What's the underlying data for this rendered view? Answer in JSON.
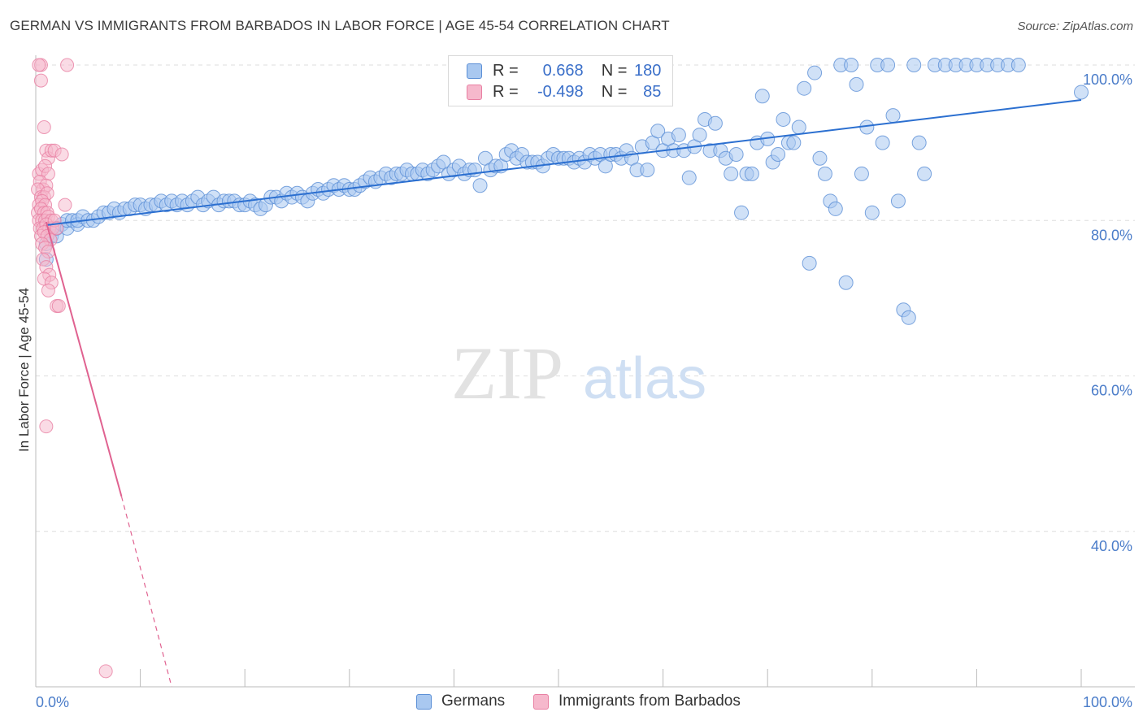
{
  "title": "GERMAN VS IMMIGRANTS FROM BARBADOS IN LABOR FORCE | AGE 45-54 CORRELATION CHART",
  "source": "Source: ZipAtlas.com",
  "watermark": {
    "zip": "ZIP",
    "atlas": "atlas"
  },
  "colors": {
    "blue_fill": "#a9c8f0",
    "blue_stroke": "#5b8fd6",
    "blue_line": "#2b6fd0",
    "pink_fill": "#f6b8cc",
    "pink_stroke": "#e87fa2",
    "pink_line": "#e06290",
    "axis_label": "#4a7cc9"
  },
  "legend": {
    "rows": [
      {
        "r_label": "R = ",
        "r_value": "0.668",
        "n_label": "N = ",
        "n_value": "180"
      },
      {
        "r_label": "R = ",
        "r_value": "-0.498",
        "n_label": "N = ",
        "n_value": "85"
      }
    ]
  },
  "bottom_legend": {
    "germans": "Germans",
    "barbados": "Immigrants from Barbados"
  },
  "chart_data": {
    "type": "scatter",
    "title": "GERMAN VS IMMIGRANTS FROM BARBADOS IN LABOR FORCE | AGE 45-54 CORRELATION CHART",
    "xlabel": "",
    "ylabel": "In Labor Force | Age 45-54",
    "xlim": [
      0,
      100
    ],
    "ylim": [
      20,
      100
    ],
    "x_tick_labels": [
      "0.0%",
      "100.0%"
    ],
    "y_ticks": [
      {
        "value": 100,
        "label": "100.0%"
      },
      {
        "value": 80,
        "label": "80.0%"
      },
      {
        "value": 60,
        "label": "60.0%"
      },
      {
        "value": 40,
        "label": "40.0%"
      }
    ],
    "grid": true,
    "series": [
      {
        "name": "Germans",
        "color": "#a9c8f0",
        "trend": {
          "x0": 1,
          "y0": 79.4,
          "x1": 100,
          "y1": 95.5
        },
        "points": [
          [
            1,
            77
          ],
          [
            1,
            75
          ],
          [
            1.5,
            78
          ],
          [
            2,
            78
          ],
          [
            2,
            79
          ],
          [
            2.5,
            79.5
          ],
          [
            3,
            79
          ],
          [
            3,
            80
          ],
          [
            3.5,
            80
          ],
          [
            4,
            79.5
          ],
          [
            4,
            80
          ],
          [
            4.5,
            80.5
          ],
          [
            5,
            80
          ],
          [
            5.5,
            80
          ],
          [
            6,
            80.5
          ],
          [
            6.5,
            81
          ],
          [
            7,
            81
          ],
          [
            7.5,
            81.5
          ],
          [
            8,
            81
          ],
          [
            8.5,
            81.5
          ],
          [
            9,
            81.5
          ],
          [
            9.5,
            82
          ],
          [
            10,
            82
          ],
          [
            10.5,
            81.5
          ],
          [
            11,
            82
          ],
          [
            11.5,
            82
          ],
          [
            12,
            82.5
          ],
          [
            12.5,
            82
          ],
          [
            13,
            82.5
          ],
          [
            13.5,
            82
          ],
          [
            14,
            82.5
          ],
          [
            14.5,
            82
          ],
          [
            15,
            82.5
          ],
          [
            15.5,
            83
          ],
          [
            16,
            82
          ],
          [
            16.5,
            82.5
          ],
          [
            17,
            83
          ],
          [
            17.5,
            82
          ],
          [
            18,
            82.5
          ],
          [
            18.5,
            82.5
          ],
          [
            19,
            82.5
          ],
          [
            19.5,
            82
          ],
          [
            20,
            82
          ],
          [
            20.5,
            82.5
          ],
          [
            21,
            82
          ],
          [
            21.5,
            81.5
          ],
          [
            22,
            82
          ],
          [
            22.5,
            83
          ],
          [
            23,
            83
          ],
          [
            23.5,
            82.5
          ],
          [
            24,
            83.5
          ],
          [
            24.5,
            83
          ],
          [
            25,
            83.5
          ],
          [
            25.5,
            83
          ],
          [
            26,
            82.5
          ],
          [
            26.5,
            83.5
          ],
          [
            27,
            84
          ],
          [
            27.5,
            83.5
          ],
          [
            28,
            84
          ],
          [
            28.5,
            84.5
          ],
          [
            29,
            84
          ],
          [
            29.5,
            84.5
          ],
          [
            30,
            84
          ],
          [
            30.5,
            84
          ],
          [
            31,
            84.5
          ],
          [
            31.5,
            85
          ],
          [
            32,
            85.5
          ],
          [
            32.5,
            85
          ],
          [
            33,
            85.5
          ],
          [
            33.5,
            86
          ],
          [
            34,
            85.5
          ],
          [
            34.5,
            86
          ],
          [
            35,
            86
          ],
          [
            35.5,
            86.5
          ],
          [
            36,
            86
          ],
          [
            36.5,
            86
          ],
          [
            37,
            86.5
          ],
          [
            37.5,
            86
          ],
          [
            38,
            86.5
          ],
          [
            38.5,
            87
          ],
          [
            39,
            87.5
          ],
          [
            39.5,
            86
          ],
          [
            40,
            86.5
          ],
          [
            40.5,
            87
          ],
          [
            41,
            86
          ],
          [
            41.5,
            86.5
          ],
          [
            42,
            86.5
          ],
          [
            42.5,
            84.5
          ],
          [
            43,
            88
          ],
          [
            43.5,
            86.5
          ],
          [
            44,
            87
          ],
          [
            44.5,
            87
          ],
          [
            45,
            88.5
          ],
          [
            45.5,
            89
          ],
          [
            46,
            88
          ],
          [
            46.5,
            88.5
          ],
          [
            47,
            87.5
          ],
          [
            47.5,
            87.5
          ],
          [
            48,
            87.5
          ],
          [
            48.5,
            87
          ],
          [
            49,
            88
          ],
          [
            49.5,
            88.5
          ],
          [
            50,
            88
          ],
          [
            50.5,
            88
          ],
          [
            51,
            88
          ],
          [
            51.5,
            87.5
          ],
          [
            52,
            88
          ],
          [
            52.5,
            87.5
          ],
          [
            53,
            88.5
          ],
          [
            53.5,
            88
          ],
          [
            54,
            88.5
          ],
          [
            54.5,
            87
          ],
          [
            55,
            88.5
          ],
          [
            55.5,
            88.5
          ],
          [
            56,
            88
          ],
          [
            56.5,
            89
          ],
          [
            57,
            88
          ],
          [
            57.5,
            86.5
          ],
          [
            58,
            89.5
          ],
          [
            58.5,
            86.5
          ],
          [
            59,
            90
          ],
          [
            59.5,
            91.5
          ],
          [
            60,
            89
          ],
          [
            60.5,
            90.5
          ],
          [
            61,
            89
          ],
          [
            61.5,
            91
          ],
          [
            62,
            89
          ],
          [
            62.5,
            85.5
          ],
          [
            63,
            89.5
          ],
          [
            63.5,
            91
          ],
          [
            64,
            93
          ],
          [
            64.5,
            89
          ],
          [
            65,
            92.5
          ],
          [
            65.5,
            89
          ],
          [
            66,
            88
          ],
          [
            66.5,
            86
          ],
          [
            67,
            88.5
          ],
          [
            67.5,
            81
          ],
          [
            68,
            86
          ],
          [
            68.5,
            86
          ],
          [
            69,
            90
          ],
          [
            69.5,
            96
          ],
          [
            70,
            90.5
          ],
          [
            70.5,
            87.5
          ],
          [
            71,
            88.5
          ],
          [
            71.5,
            93
          ],
          [
            72,
            90
          ],
          [
            72.5,
            90
          ],
          [
            73,
            92
          ],
          [
            73.5,
            97
          ],
          [
            74,
            74.5
          ],
          [
            74.5,
            99
          ],
          [
            75,
            88
          ],
          [
            75.5,
            86
          ],
          [
            76,
            82.5
          ],
          [
            76.5,
            81.5
          ],
          [
            77,
            100
          ],
          [
            77.5,
            72
          ],
          [
            78,
            100
          ],
          [
            78.5,
            97.5
          ],
          [
            79,
            86
          ],
          [
            79.5,
            92
          ],
          [
            80,
            81
          ],
          [
            80.5,
            100
          ],
          [
            81,
            90
          ],
          [
            81.5,
            100
          ],
          [
            82,
            93.5
          ],
          [
            82.5,
            82.5
          ],
          [
            83,
            68.5
          ],
          [
            83.5,
            67.5
          ],
          [
            84,
            100
          ],
          [
            84.5,
            90
          ],
          [
            85,
            86
          ],
          [
            86,
            100
          ],
          [
            87,
            100
          ],
          [
            88,
            100
          ],
          [
            89,
            100
          ],
          [
            90,
            100
          ],
          [
            91,
            100
          ],
          [
            92,
            100
          ],
          [
            93,
            100
          ],
          [
            94,
            100
          ],
          [
            100,
            96.5
          ]
        ]
      },
      {
        "name": "Immigrants from Barbados",
        "color": "#f6b8cc",
        "trend": {
          "x0": 1,
          "y0": 79.8,
          "x1": 8.2,
          "y1": 44.5,
          "dash_to": {
            "x": 13,
            "y": 20
          }
        },
        "points": [
          [
            0.5,
            100
          ],
          [
            0.5,
            98
          ],
          [
            0.8,
            92
          ],
          [
            1,
            89
          ],
          [
            1.2,
            88
          ],
          [
            1.5,
            89
          ],
          [
            1.8,
            89
          ],
          [
            0.3,
            86
          ],
          [
            0.6,
            86.5
          ],
          [
            0.9,
            87
          ],
          [
            1.2,
            86
          ],
          [
            0.4,
            85
          ],
          [
            0.7,
            84
          ],
          [
            1,
            84.5
          ],
          [
            0.2,
            84
          ],
          [
            0.5,
            83
          ],
          [
            0.8,
            83
          ],
          [
            1.1,
            83.5
          ],
          [
            0.3,
            82
          ],
          [
            0.6,
            82.5
          ],
          [
            0.9,
            82
          ],
          [
            0.2,
            81
          ],
          [
            0.5,
            81.5
          ],
          [
            0.8,
            81
          ],
          [
            1.1,
            81
          ],
          [
            0.3,
            80
          ],
          [
            0.6,
            80
          ],
          [
            0.9,
            80
          ],
          [
            1.2,
            80.5
          ],
          [
            1.5,
            80
          ],
          [
            0.4,
            79
          ],
          [
            0.7,
            79
          ],
          [
            1,
            79.5
          ],
          [
            1.3,
            79
          ],
          [
            1.6,
            79
          ],
          [
            0.5,
            78
          ],
          [
            0.8,
            78.5
          ],
          [
            1.1,
            78
          ],
          [
            1.4,
            77.5
          ],
          [
            0.6,
            77
          ],
          [
            0.9,
            76.5
          ],
          [
            1.2,
            76
          ],
          [
            0.7,
            75
          ],
          [
            1,
            74
          ],
          [
            1.3,
            73
          ],
          [
            0.8,
            72.5
          ],
          [
            1.5,
            72
          ],
          [
            1.2,
            71
          ],
          [
            2,
            69
          ],
          [
            2.2,
            69
          ],
          [
            3,
            100
          ],
          [
            2.5,
            88.5
          ],
          [
            2.8,
            82
          ],
          [
            1.8,
            80
          ],
          [
            2,
            79
          ],
          [
            0.3,
            100
          ],
          [
            1,
            53.5
          ],
          [
            6.7,
            22
          ]
        ]
      }
    ]
  }
}
